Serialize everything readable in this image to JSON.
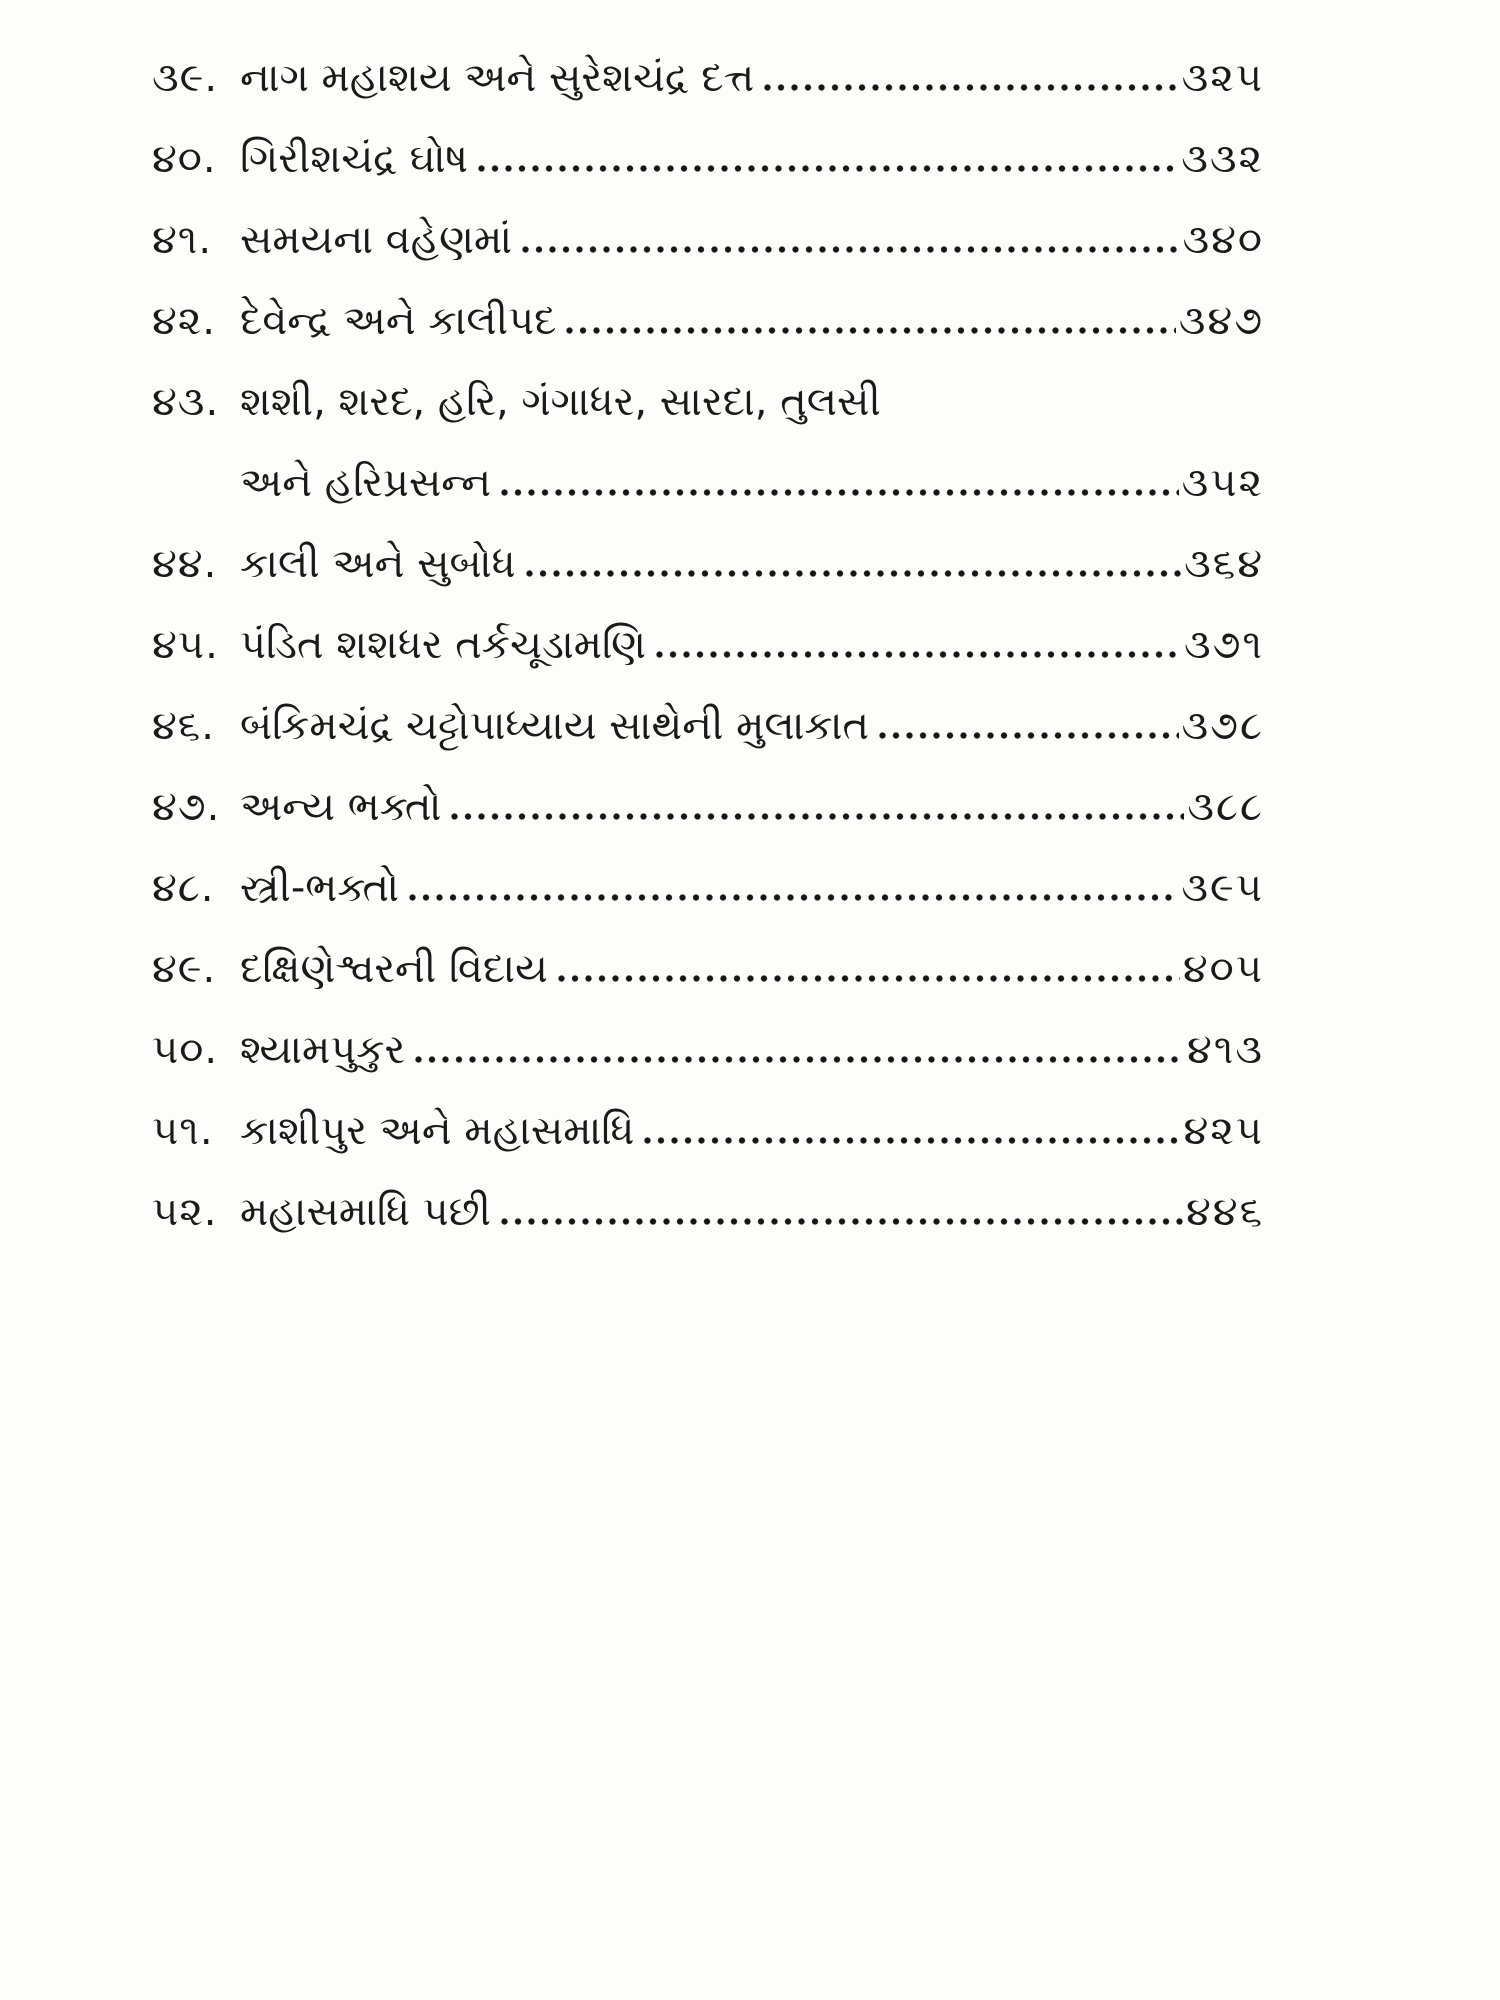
{
  "document": {
    "kind": "book-table-of-contents",
    "script": "Gujarati"
  },
  "colors": {
    "text": "#1a1a1a",
    "background": "#fdfdfc"
  },
  "toc": {
    "entries": [
      {
        "number": "૩૯.",
        "title": "નાગ મહાશય અને સુરેશચંદ્ર દત્ત",
        "page": "૩૨૫"
      },
      {
        "number": "૪૦.",
        "title": "ગિરીશચંદ્ર ઘોષ",
        "page": "૩૩૨"
      },
      {
        "number": "૪૧.",
        "title": "સમયના વહેણમાં",
        "page": "૩૪૦"
      },
      {
        "number": "૪૨.",
        "title": "દેવેન્દ્ર અને કાલીપદ",
        "page": "૩૪૭"
      },
      {
        "number": "૪૩.",
        "title": "શશી, શરદ, હરિ, ગંગાધર, સારદા, તુલસી",
        "title_line2": "અને હરિપ્રસન્ન",
        "page": "૩૫૨"
      },
      {
        "number": "૪૪.",
        "title": "કાલી અને સુબોધ",
        "page": "૩૬૪"
      },
      {
        "number": "૪૫.",
        "title": "પંડિત શશધર તર્કચૂડામણિ",
        "page": "૩૭૧"
      },
      {
        "number": "૪૬.",
        "title": "બંકિમચંદ્ર ચટ્ટોપાધ્યાય સાથેની મુલાકાત",
        "page": "૩૭૮"
      },
      {
        "number": "૪૭.",
        "title": "અન્ય ભક્તો",
        "page": "૩૮૮"
      },
      {
        "number": "૪૮.",
        "title": "સ્ત્રી-ભક્તો",
        "page": "૩૯૫"
      },
      {
        "number": "૪૯.",
        "title": "દક્ષિણેશ્વરની વિદાય",
        "page": "૪૦૫"
      },
      {
        "number": "૫૦.",
        "title": "શ્યામપુકુર",
        "page": "૪૧૩"
      },
      {
        "number": "૫૧.",
        "title": "કાશીપુર અને મહાસમાધિ",
        "page": "૪૨૫"
      },
      {
        "number": "૫૨.",
        "title": "મહાસમાધિ પછી",
        "page": "૪૪૬"
      }
    ]
  }
}
